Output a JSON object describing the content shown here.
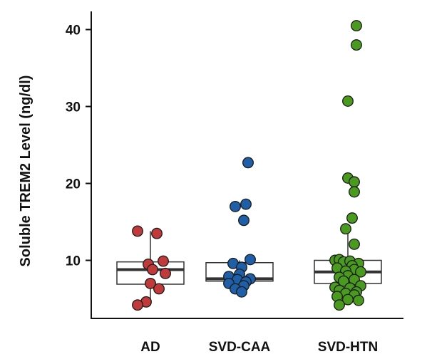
{
  "chart_data": {
    "type": "scatter",
    "subtype": "box-plot-with-jittered-points",
    "ylabel": "Soluble TREM2 Level (ng/dl)",
    "ylim": [
      2,
      44
    ],
    "yticks": [
      "10",
      "20",
      "30",
      "40"
    ],
    "categories": [
      "AD",
      "SVD-CAA",
      "SVD-HTN"
    ],
    "colors": [
      "#c0393b",
      "#1f5fa8",
      "#4a9a1f"
    ],
    "boxes": [
      {
        "q1": 6.9,
        "median": 8.8,
        "q3": 9.8,
        "whisker_low": 4.2,
        "whisker_high": 13.8
      },
      {
        "q1": 7.3,
        "median": 7.6,
        "q3": 9.7,
        "whisker_low": 5.9,
        "whisker_high": 10.0
      },
      {
        "q1": 7.0,
        "median": 8.5,
        "q3": 10.0,
        "whisker_low": 4.2,
        "whisker_high": 14.0
      }
    ],
    "series": [
      {
        "category": "AD",
        "points": [
          {
            "j": -0.6,
            "y": 13.8
          },
          {
            "j": 0.3,
            "y": 13.5
          },
          {
            "j": 0.6,
            "y": 9.9
          },
          {
            "j": -0.1,
            "y": 9.5
          },
          {
            "j": 0.1,
            "y": 8.8
          },
          {
            "j": 0.7,
            "y": 8.3
          },
          {
            "j": 0.0,
            "y": 7.0
          },
          {
            "j": 0.4,
            "y": 6.3
          },
          {
            "j": -0.2,
            "y": 4.6
          },
          {
            "j": -0.6,
            "y": 4.2
          }
        ]
      },
      {
        "category": "SVD-CAA",
        "points": [
          {
            "j": 0.4,
            "y": 22.7
          },
          {
            "j": 0.3,
            "y": 17.3
          },
          {
            "j": -0.2,
            "y": 17.0
          },
          {
            "j": 0.2,
            "y": 15.2
          },
          {
            "j": 0.5,
            "y": 10.1
          },
          {
            "j": -0.3,
            "y": 9.6
          },
          {
            "j": 0.1,
            "y": 9.1
          },
          {
            "j": 0.0,
            "y": 8.2
          },
          {
            "j": -0.5,
            "y": 7.9
          },
          {
            "j": 0.5,
            "y": 7.6
          },
          {
            "j": -0.1,
            "y": 7.5
          },
          {
            "j": 0.3,
            "y": 7.2
          },
          {
            "j": -0.5,
            "y": 7.0
          },
          {
            "j": 0.2,
            "y": 6.7
          },
          {
            "j": -0.2,
            "y": 6.3
          },
          {
            "j": 0.1,
            "y": 5.9
          }
        ]
      },
      {
        "category": "SVD-HTN",
        "points": [
          {
            "j": 0.4,
            "y": 40.5
          },
          {
            "j": 0.4,
            "y": 38.0
          },
          {
            "j": 0.0,
            "y": 30.7
          },
          {
            "j": 0.0,
            "y": 20.7
          },
          {
            "j": 0.3,
            "y": 20.2
          },
          {
            "j": 0.3,
            "y": 18.9
          },
          {
            "j": 0.2,
            "y": 15.5
          },
          {
            "j": -0.1,
            "y": 14.1
          },
          {
            "j": 0.3,
            "y": 12.1
          },
          {
            "j": -0.6,
            "y": 10.0
          },
          {
            "j": -0.4,
            "y": 10.1
          },
          {
            "j": -0.2,
            "y": 9.8
          },
          {
            "j": 0.1,
            "y": 9.9
          },
          {
            "j": 0.5,
            "y": 9.6
          },
          {
            "j": 0.2,
            "y": 9.3
          },
          {
            "j": -0.5,
            "y": 9.0
          },
          {
            "j": 0.3,
            "y": 8.8
          },
          {
            "j": -0.1,
            "y": 8.6
          },
          {
            "j": 0.6,
            "y": 8.5
          },
          {
            "j": 0.0,
            "y": 8.0
          },
          {
            "j": -0.4,
            "y": 7.8
          },
          {
            "j": 0.3,
            "y": 7.5
          },
          {
            "j": -0.2,
            "y": 7.3
          },
          {
            "j": 0.6,
            "y": 6.7
          },
          {
            "j": -0.6,
            "y": 6.5
          },
          {
            "j": 0.1,
            "y": 6.4
          },
          {
            "j": -0.4,
            "y": 6.1
          },
          {
            "j": 0.4,
            "y": 5.9
          },
          {
            "j": -0.1,
            "y": 5.7
          },
          {
            "j": 0.3,
            "y": 5.5
          },
          {
            "j": -0.5,
            "y": 5.3
          },
          {
            "j": 0.0,
            "y": 4.9
          },
          {
            "j": 0.5,
            "y": 4.8
          },
          {
            "j": -0.4,
            "y": 4.2
          }
        ]
      }
    ]
  }
}
